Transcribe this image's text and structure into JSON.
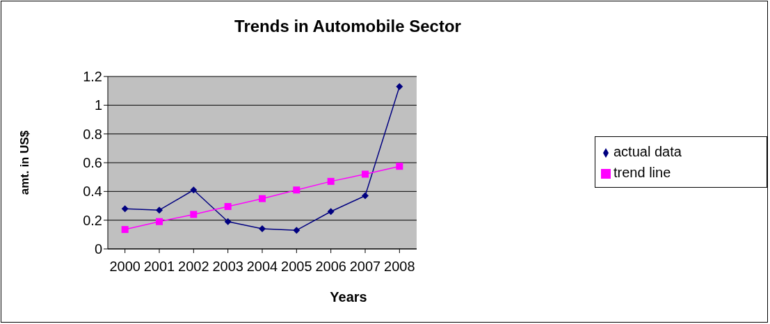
{
  "chart_data": {
    "type": "line",
    "title": "Trends in Automobile Sector",
    "xlabel": "Years",
    "ylabel": "amt. in US$",
    "categories": [
      "2000",
      "2001",
      "2002",
      "2003",
      "2004",
      "2005",
      "2006",
      "2007",
      "2008"
    ],
    "series": [
      {
        "name": "actual data",
        "color": "#000080",
        "marker": "diamond",
        "values": [
          0.28,
          0.27,
          0.41,
          0.19,
          0.14,
          0.13,
          0.26,
          0.37,
          1.13
        ]
      },
      {
        "name": "trend line",
        "color": "#ff00ff",
        "marker": "square",
        "values": [
          0.135,
          0.19,
          0.24,
          0.295,
          0.35,
          0.41,
          0.47,
          0.52,
          0.575
        ]
      }
    ],
    "ylim": [
      0,
      1.2
    ],
    "yticks": [
      0,
      0.2,
      0.4,
      0.6,
      0.8,
      1,
      1.2
    ],
    "grid": "y",
    "legend": "right",
    "line_style": "solid"
  }
}
